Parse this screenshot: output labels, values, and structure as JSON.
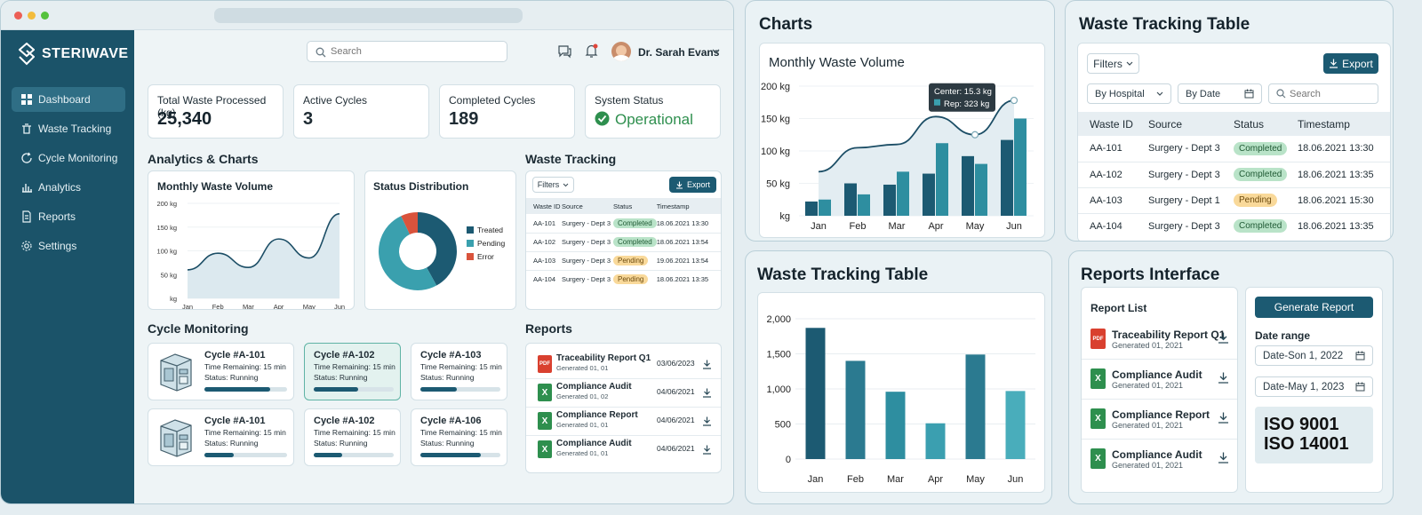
{
  "app": {
    "brand": "STERIWAVE",
    "search_placeholder": "Search",
    "user_name": "Dr. Sarah Evans"
  },
  "sidebar": {
    "items": [
      {
        "label": "Dashboard",
        "icon": "grid-icon",
        "active": true
      },
      {
        "label": "Waste Tracking",
        "icon": "bin-icon"
      },
      {
        "label": "Cycle Monitoring",
        "icon": "cycle-icon"
      },
      {
        "label": "Analytics",
        "icon": "bar-chart-icon"
      },
      {
        "label": "Reports",
        "icon": "document-icon"
      },
      {
        "label": "Settings",
        "icon": "gear-icon"
      }
    ]
  },
  "kpis": [
    {
      "label": "Total Waste Processed (kg)",
      "value": "25,340"
    },
    {
      "label": "Active Cycles",
      "value": "3"
    },
    {
      "label": "Completed Cycles",
      "value": "189"
    },
    {
      "label": "System Status",
      "value": "Operational"
    }
  ],
  "sections": {
    "analytics": "Analytics & Charts",
    "waste_tracking": "Waste Tracking",
    "cycle_monitoring": "Cycle Monitoring",
    "reports": "Reports"
  },
  "monthly_small": {
    "title": "Monthly Waste Volume"
  },
  "status_dist": {
    "title": "Status Distribution",
    "legend": [
      "Treated",
      "Pending",
      "Error"
    ]
  },
  "waste_small": {
    "filters": "Filters",
    "export": "Export",
    "headers": [
      "Waste ID",
      "Source",
      "Status",
      "Timestamp"
    ],
    "rows": [
      [
        "AA-101",
        "Surgery - Dept 3",
        "Completed",
        "18.06.2021 13:30"
      ],
      [
        "AA-102",
        "Surgery - Dept 3",
        "Completed",
        "18.06.2021 13:54"
      ],
      [
        "AA-103",
        "Surgery - Dept 3",
        "Pending",
        "19.06.2021 13:54"
      ],
      [
        "AA-104",
        "Surgery - Dept 3",
        "Pending",
        "18.06.2021 13:35"
      ]
    ]
  },
  "cycles": [
    {
      "title": "Cycle #A-101",
      "remaining": "Time Remaining: 15 min",
      "status": "Status: Running",
      "progress": 0.8
    },
    {
      "title": "Cycle #A-102",
      "remaining": "Time Remaining: 15 min",
      "status": "Status: Running",
      "progress": 0.55
    },
    {
      "title": "Cycle #A-103",
      "remaining": "Time Remaining: 15 min",
      "status": "Status: Running",
      "progress": 0.45
    },
    {
      "title": "Cycle #A-101",
      "remaining": "Time Remaining: 15 min",
      "status": "Status: Running",
      "progress": 0.35
    },
    {
      "title": "Cycle #A-102",
      "remaining": "Time Remaining: 15 min",
      "status": "Status: Running",
      "progress": 0.35
    },
    {
      "title": "Cycle #A-106",
      "remaining": "Time Remaining: 15 min",
      "status": "Status: Running",
      "progress": 0.75
    }
  ],
  "reports_small": [
    {
      "title": "Traceability Report Q1",
      "sub": "Generated 01, 01",
      "date": "03/06/2023",
      "type": "PDF"
    },
    {
      "title": "Compliance Audit",
      "sub": "Generated 01, 02",
      "date": "04/06/2021",
      "type": "X"
    },
    {
      "title": "Compliance Report",
      "sub": "Generated 01, 01",
      "date": "04/06/2021",
      "type": "X"
    },
    {
      "title": "Compliance Audit",
      "sub": "Generated 01, 01",
      "date": "04/06/2021",
      "type": "X"
    }
  ],
  "charts_panel": {
    "title": "Charts",
    "chart_title": "Monthly Waste Volume",
    "tooltip": {
      "center": "Center: 15.3 kg",
      "rep": "Rep: 323 kg"
    }
  },
  "waste_table_panel": {
    "title": "Waste Tracking Table",
    "filters": "Filters",
    "export": "Export",
    "by_hospital": "By Hospital",
    "by_date": "By Date",
    "search_placeholder": "Search",
    "headers": [
      "Waste ID",
      "Source",
      "Status",
      "Timestamp"
    ],
    "rows": [
      [
        "AA-101",
        "Surgery - Dept 3",
        "Completed",
        "18.06.2021 13:30"
      ],
      [
        "AA-102",
        "Surgery - Dept 3",
        "Completed",
        "18.06.2021 13:35"
      ],
      [
        "AA-103",
        "Surgery - Dept 1",
        "Pending",
        "18.06.2021 15:30"
      ],
      [
        "AA-104",
        "Surgery - Dept 3",
        "Completed",
        "18.06.2021 13:35"
      ]
    ]
  },
  "bar_panel": {
    "title": "Waste Tracking Table"
  },
  "reports_panel": {
    "title": "Reports Interface",
    "list_title": "Report List",
    "generate": "Generate Report",
    "date_range": "Date range",
    "date1": "Date-Son 1, 2022",
    "date2": "Date-May 1, 2023",
    "cert1": "ISO 9001",
    "cert2": "ISO 14001",
    "items": [
      {
        "title": "Traceability Report Q1",
        "sub": "Generated 01, 2021",
        "type": "PDF"
      },
      {
        "title": "Compliance Audit",
        "sub": "Generated 01, 2021",
        "type": "X"
      },
      {
        "title": "Compliance Report",
        "sub": "Generated 01, 2021",
        "type": "X"
      },
      {
        "title": "Compliance Audit",
        "sub": "Generated 01, 2021",
        "type": "X"
      }
    ]
  },
  "chart_data": [
    {
      "type": "area",
      "title": "Monthly Waste Volume",
      "categories": [
        "Jan",
        "Feb",
        "Mar",
        "Apr",
        "May",
        "Jun"
      ],
      "series": [
        {
          "values": [
            60,
            95,
            65,
            125,
            85,
            178
          ]
        }
      ],
      "yticks": [
        "200 kg",
        "150 kg",
        "100 kg",
        "50 kg",
        "kg"
      ],
      "ylim": [
        0,
        200
      ]
    },
    {
      "type": "pie",
      "title": "Status Distribution",
      "categories": [
        "Treated",
        "Pending",
        "Error"
      ],
      "values": [
        42,
        51,
        7
      ],
      "colors": [
        "#1c5a72",
        "#3aa0ae",
        "#d9533c"
      ]
    },
    {
      "type": "bar",
      "title": "Monthly Waste Volume",
      "categories": [
        "Jan",
        "Feb",
        "Mar",
        "Apr",
        "May",
        "Jun"
      ],
      "series": [
        {
          "values": [
            22,
            50,
            48,
            65,
            92,
            117
          ]
        },
        {
          "values": [
            25,
            33,
            68,
            112,
            80,
            150
          ]
        }
      ],
      "line": [
        68,
        105,
        110,
        153,
        125,
        178
      ],
      "yticks": [
        "200 kg",
        "150 kg",
        "100 kg",
        "50 kg",
        "kg"
      ],
      "ylim": [
        0,
        200
      ],
      "colors": [
        "#1c5a72",
        "#2e8ea0"
      ]
    },
    {
      "type": "bar",
      "categories": [
        "Jan",
        "Feb",
        "Mar",
        "Apr",
        "May",
        "Jun"
      ],
      "values": [
        1870,
        1400,
        960,
        510,
        1490,
        970
      ],
      "yticks": [
        "2,000",
        "1,500",
        "1,000",
        "500",
        "0"
      ],
      "ylim": [
        0,
        2000
      ],
      "colors": [
        "#1c5a72",
        "#2b7a90",
        "#2e8ea0",
        "#3b9fb0",
        "#2b7a90",
        "#49adbb"
      ]
    }
  ]
}
